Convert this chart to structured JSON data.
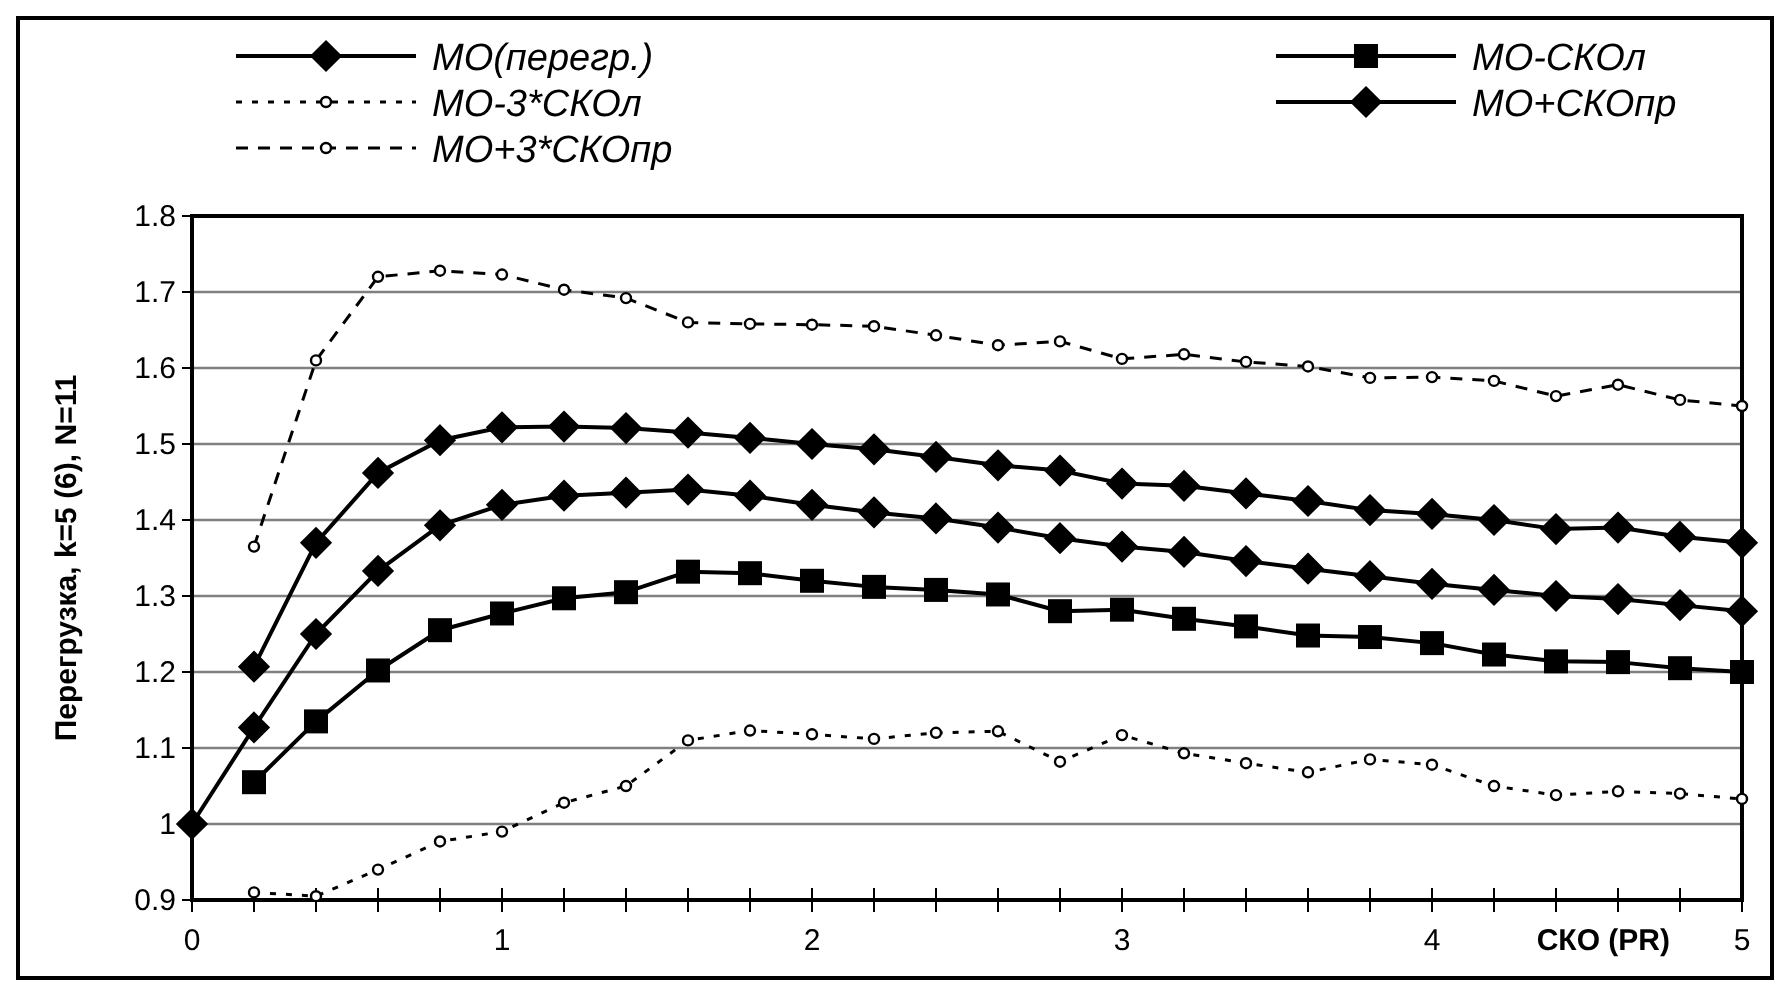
{
  "chart_data": {
    "type": "line",
    "ylabel": "Перегрузка, k=5 (6), N=11",
    "xlabel": "СКО (PR)",
    "xlim": [
      0,
      5
    ],
    "xticks": [
      0,
      {
        "value": 0.2,
        "label": null
      },
      {
        "value": 0.4,
        "label": null
      },
      {
        "value": 0.6,
        "label": null
      },
      {
        "value": 0.8,
        "label": null
      },
      1,
      {
        "value": 1.2,
        "label": null
      },
      {
        "value": 1.4,
        "label": null
      },
      {
        "value": 1.6,
        "label": null
      },
      {
        "value": 1.8,
        "label": null
      },
      2,
      {
        "value": 2.2,
        "label": null
      },
      {
        "value": 2.4,
        "label": null
      },
      {
        "value": 2.6,
        "label": null
      },
      {
        "value": 2.8,
        "label": null
      },
      3,
      {
        "value": 3.2,
        "label": null
      },
      {
        "value": 3.4,
        "label": null
      },
      {
        "value": 3.6,
        "label": null
      },
      {
        "value": 3.8,
        "label": null
      },
      4,
      {
        "value": 4.2,
        "label": null
      },
      {
        "value": 4.4,
        "label": null
      },
      {
        "value": 4.6,
        "label": null
      },
      {
        "value": 4.8,
        "label": null
      },
      5
    ],
    "ylim": [
      0.9,
      1.8
    ],
    "yticks": [
      0.9,
      1,
      1.1,
      1.2,
      1.3,
      1.4,
      1.5,
      1.6,
      1.7,
      1.8
    ],
    "grid": "y",
    "legend": "top",
    "x": [
      0,
      0.2,
      0.4,
      0.6,
      0.8,
      1,
      1.2,
      1.4,
      1.6,
      1.8,
      2,
      2.2,
      2.4,
      2.6,
      2.8,
      3,
      3.2,
      3.4,
      3.6,
      3.8,
      4,
      4.2,
      4.4,
      4.6,
      4.8,
      5
    ],
    "series": [
      {
        "name": "МО(перегр.)",
        "color": "#000000",
        "marker": "diamond",
        "line_style": "solid",
        "values": [
          1.0,
          1.127,
          1.25,
          1.333,
          1.393,
          1.42,
          1.432,
          1.436,
          1.44,
          1.432,
          1.42,
          1.41,
          1.402,
          1.39,
          1.376,
          1.365,
          1.358,
          1.346,
          1.336,
          1.326,
          1.316,
          1.308,
          1.3,
          1.296,
          1.288,
          1.28
        ]
      },
      {
        "name": "МО-СКОл",
        "color": "#000000",
        "marker": "square",
        "line_style": "solid",
        "values": [
          null,
          1.055,
          1.135,
          1.202,
          1.255,
          1.277,
          1.297,
          1.305,
          1.332,
          1.33,
          1.32,
          1.312,
          1.308,
          1.302,
          1.28,
          1.282,
          1.27,
          1.26,
          1.248,
          1.246,
          1.238,
          1.223,
          1.214,
          1.213,
          1.205,
          1.2
        ]
      },
      {
        "name": "МО-3*СКОл",
        "color": "#000000",
        "marker": "circle",
        "line_style": "dotted",
        "values": [
          null,
          0.91,
          0.905,
          0.94,
          0.977,
          0.99,
          1.028,
          1.05,
          1.11,
          1.123,
          1.118,
          1.112,
          1.12,
          1.122,
          1.082,
          1.117,
          1.093,
          1.08,
          1.068,
          1.085,
          1.078,
          1.05,
          1.038,
          1.043,
          1.04,
          1.033
        ]
      },
      {
        "name": "МО+СКОпр",
        "color": "#000000",
        "marker": "diamond",
        "line_style": "solid",
        "values": [
          null,
          1.207,
          1.37,
          1.462,
          1.505,
          1.522,
          1.523,
          1.521,
          1.515,
          1.508,
          1.5,
          1.493,
          1.483,
          1.472,
          1.465,
          1.448,
          1.445,
          1.435,
          1.425,
          1.413,
          1.408,
          1.4,
          1.388,
          1.39,
          1.378,
          1.37
        ]
      },
      {
        "name": "МО+3*СКОпр",
        "color": "#000000",
        "marker": "circle",
        "line_style": "dashed",
        "values": [
          null,
          1.365,
          1.61,
          1.72,
          1.728,
          1.723,
          1.703,
          1.692,
          1.66,
          1.658,
          1.657,
          1.655,
          1.643,
          1.63,
          1.635,
          1.612,
          1.618,
          1.608,
          1.602,
          1.587,
          1.588,
          1.583,
          1.563,
          1.578,
          1.558,
          1.55
        ]
      }
    ]
  }
}
